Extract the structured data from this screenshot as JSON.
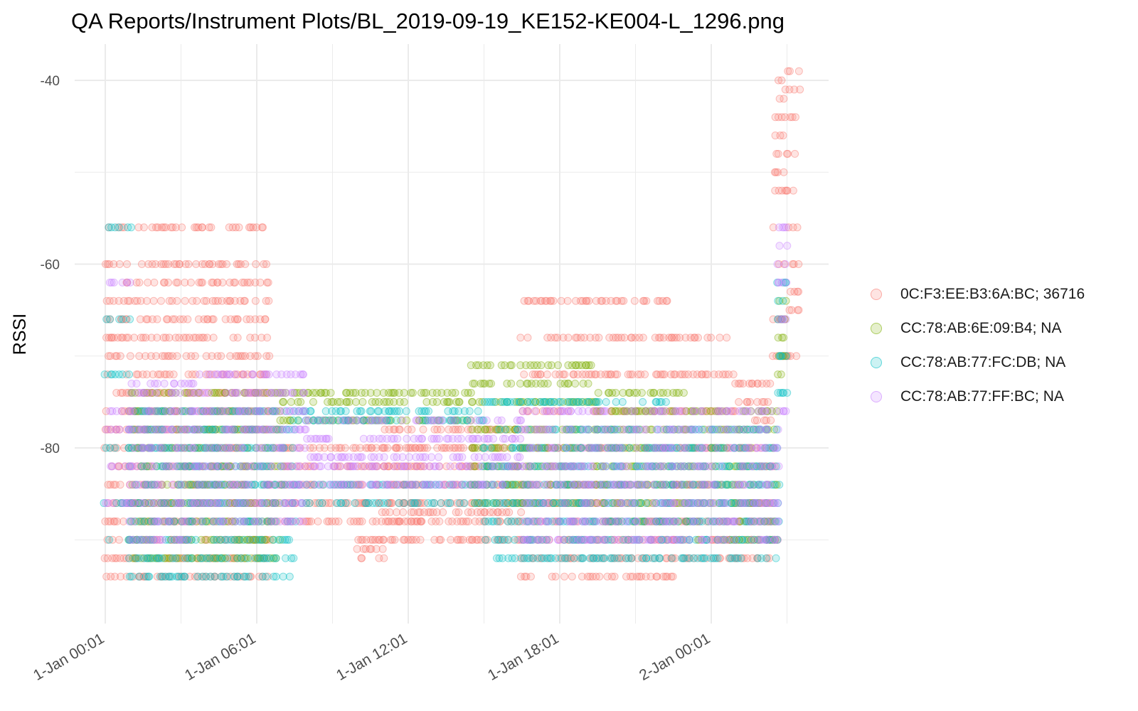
{
  "chart_data": {
    "type": "scatter",
    "title": "QA Reports/Instrument Plots/BL_2019-09-19_KE152-KE004-L_1296.png",
    "xlabel": "",
    "ylabel": "RSSI",
    "ylim": [
      -97,
      -37
    ],
    "xlim": [
      "2020-01-01 00:01",
      "2020-01-02 04:00"
    ],
    "y_ticks": [
      -40,
      -60,
      -80
    ],
    "x_ticks": [
      {
        "label": "1-Jan 00:01",
        "value": "2020-01-01 00:01"
      },
      {
        "label": "1-Jan 06:01",
        "value": "2020-01-01 06:01"
      },
      {
        "label": "1-Jan 12:01",
        "value": "2020-01-01 12:01"
      },
      {
        "label": "1-Jan 18:01",
        "value": "2020-01-01 18:01"
      },
      {
        "label": "2-Jan 00:01",
        "value": "2020-01-02 00:01"
      }
    ],
    "grid": true,
    "legend_position": "right",
    "point_opacity": 0.2,
    "series": [
      {
        "name": "0C:F3:EE:B3:6A:BC; 36716",
        "color": "#F8766D",
        "ranges": [
          {
            "from": "2020-01-01 00:01",
            "to": "2020-01-01 06:30",
            "values": [
              -56,
              -60,
              -62,
              -64,
              -66,
              -68,
              -70,
              -72,
              -74,
              -76,
              -78,
              -80,
              -82,
              -84,
              -86,
              -88,
              -90,
              -92,
              -94
            ]
          },
          {
            "from": "2020-01-01 06:30",
            "to": "2020-01-01 12:30",
            "values": [
              -80,
              -82,
              -84,
              -86,
              -88
            ]
          },
          {
            "from": "2020-01-01 10:00",
            "to": "2020-01-01 11:00",
            "values": [
              -86,
              -90,
              -91,
              -92
            ]
          },
          {
            "from": "2020-01-01 11:00",
            "to": "2020-01-01 16:30",
            "values": [
              -78,
              -80,
              -82,
              -84,
              -86,
              -87,
              -88,
              -90
            ]
          },
          {
            "from": "2020-01-01 16:30",
            "to": "2020-01-01 22:30",
            "values": [
              -64,
              -68,
              -72,
              -76,
              -80,
              -84,
              -86,
              -88,
              -90,
              -92,
              -94
            ]
          },
          {
            "from": "2020-01-01 22:30",
            "to": "2020-01-02 01:00",
            "values": [
              -68,
              -72,
              -76,
              -80,
              -84,
              -88,
              -90,
              -92
            ]
          },
          {
            "from": "2020-01-02 01:00",
            "to": "2020-01-02 02:30",
            "values": [
              -73,
              -75,
              -77,
              -80,
              -82,
              -86,
              -88,
              -90,
              -92
            ]
          },
          {
            "from": "2020-01-02 02:30",
            "to": "2020-01-02 03:00",
            "values": [
              -40,
              -42,
              -44,
              -46,
              -48,
              -50,
              -52,
              -56,
              -60,
              -66,
              -70
            ]
          },
          {
            "from": "2020-01-02 03:00",
            "to": "2020-01-02 03:30",
            "values": [
              -39,
              -41,
              -44,
              -48,
              -52,
              -56,
              -60,
              -63,
              -65,
              -70
            ]
          }
        ]
      },
      {
        "name": "CC:78:AB:6E:09:B4; NA",
        "color": "#7CAE00",
        "ranges": [
          {
            "from": "2020-01-01 01:00",
            "to": "2020-01-01 07:00",
            "values": [
              -74,
              -76,
              -78,
              -80,
              -82,
              -84,
              -86,
              -88,
              -90,
              -92
            ]
          },
          {
            "from": "2020-01-01 07:00",
            "to": "2020-01-01 14:30",
            "values": [
              -74,
              -75,
              -77
            ]
          },
          {
            "from": "2020-01-01 14:30",
            "to": "2020-01-01 19:30",
            "values": [
              -71,
              -73,
              -75,
              -78,
              -80,
              -82,
              -84,
              -86
            ]
          },
          {
            "from": "2020-01-01 19:30",
            "to": "2020-01-01 23:00",
            "values": [
              -74,
              -76,
              -78,
              -80,
              -82,
              -84,
              -86,
              -88
            ]
          },
          {
            "from": "2020-01-01 23:00",
            "to": "2020-01-02 02:40",
            "values": [
              -76,
              -78,
              -80,
              -82,
              -84,
              -86,
              -88,
              -90
            ]
          },
          {
            "from": "2020-01-02 02:40",
            "to": "2020-01-02 03:00",
            "values": [
              -64,
              -66,
              -68,
              -70,
              -72
            ]
          }
        ]
      },
      {
        "name": "CC:78:AB:77:FC:DB; NA",
        "color": "#00BFC4",
        "ranges": [
          {
            "from": "2020-01-01 00:01",
            "to": "2020-01-01 01:00",
            "values": [
              -56,
              -66,
              -72,
              -80,
              -86,
              -90
            ]
          },
          {
            "from": "2020-01-01 01:00",
            "to": "2020-01-01 07:30",
            "values": [
              -76,
              -78,
              -80,
              -82,
              -84,
              -86,
              -88,
              -90,
              -92,
              -94
            ]
          },
          {
            "from": "2020-01-01 07:30",
            "to": "2020-01-01 15:00",
            "values": [
              -76,
              -77,
              -84,
              -86
            ]
          },
          {
            "from": "2020-01-01 15:00",
            "to": "2020-01-01 22:30",
            "values": [
              -75,
              -78,
              -80,
              -82,
              -84,
              -86,
              -88,
              -90,
              -92
            ]
          },
          {
            "from": "2020-01-01 22:30",
            "to": "2020-01-02 02:40",
            "values": [
              -78,
              -80,
              -82,
              -84,
              -86,
              -88,
              -90,
              -92
            ]
          },
          {
            "from": "2020-01-02 02:40",
            "to": "2020-01-02 03:00",
            "values": [
              -62,
              -64,
              -66,
              -70,
              -74
            ]
          }
        ]
      },
      {
        "name": "CC:78:AB:77:FF:BC; NA",
        "color": "#C77CFF",
        "ranges": [
          {
            "from": "2020-01-01 00:01",
            "to": "2020-01-01 01:00",
            "values": [
              -62,
              -76,
              -78,
              -82,
              -86
            ]
          },
          {
            "from": "2020-01-01 01:00",
            "to": "2020-01-01 03:30",
            "values": [
              -73,
              -74,
              -76,
              -78,
              -80,
              -82,
              -84,
              -86,
              -88,
              -90
            ]
          },
          {
            "from": "2020-01-01 03:30",
            "to": "2020-01-01 08:00",
            "values": [
              -72,
              -74,
              -76,
              -78,
              -80,
              -82,
              -84,
              -86,
              -88
            ]
          },
          {
            "from": "2020-01-01 08:00",
            "to": "2020-01-01 16:30",
            "values": [
              -77,
              -79,
              -81,
              -82,
              -84
            ]
          },
          {
            "from": "2020-01-01 16:30",
            "to": "2020-01-01 22:30",
            "values": [
              -76,
              -78,
              -80,
              -82,
              -84,
              -86,
              -88,
              -90
            ]
          },
          {
            "from": "2020-01-01 22:30",
            "to": "2020-01-02 02:40",
            "values": [
              -76,
              -78,
              -80,
              -82,
              -84,
              -86,
              -88,
              -90
            ]
          },
          {
            "from": "2020-01-02 02:40",
            "to": "2020-01-02 03:00",
            "values": [
              -56,
              -58,
              -60,
              -62,
              -66,
              -76
            ]
          }
        ]
      }
    ]
  }
}
